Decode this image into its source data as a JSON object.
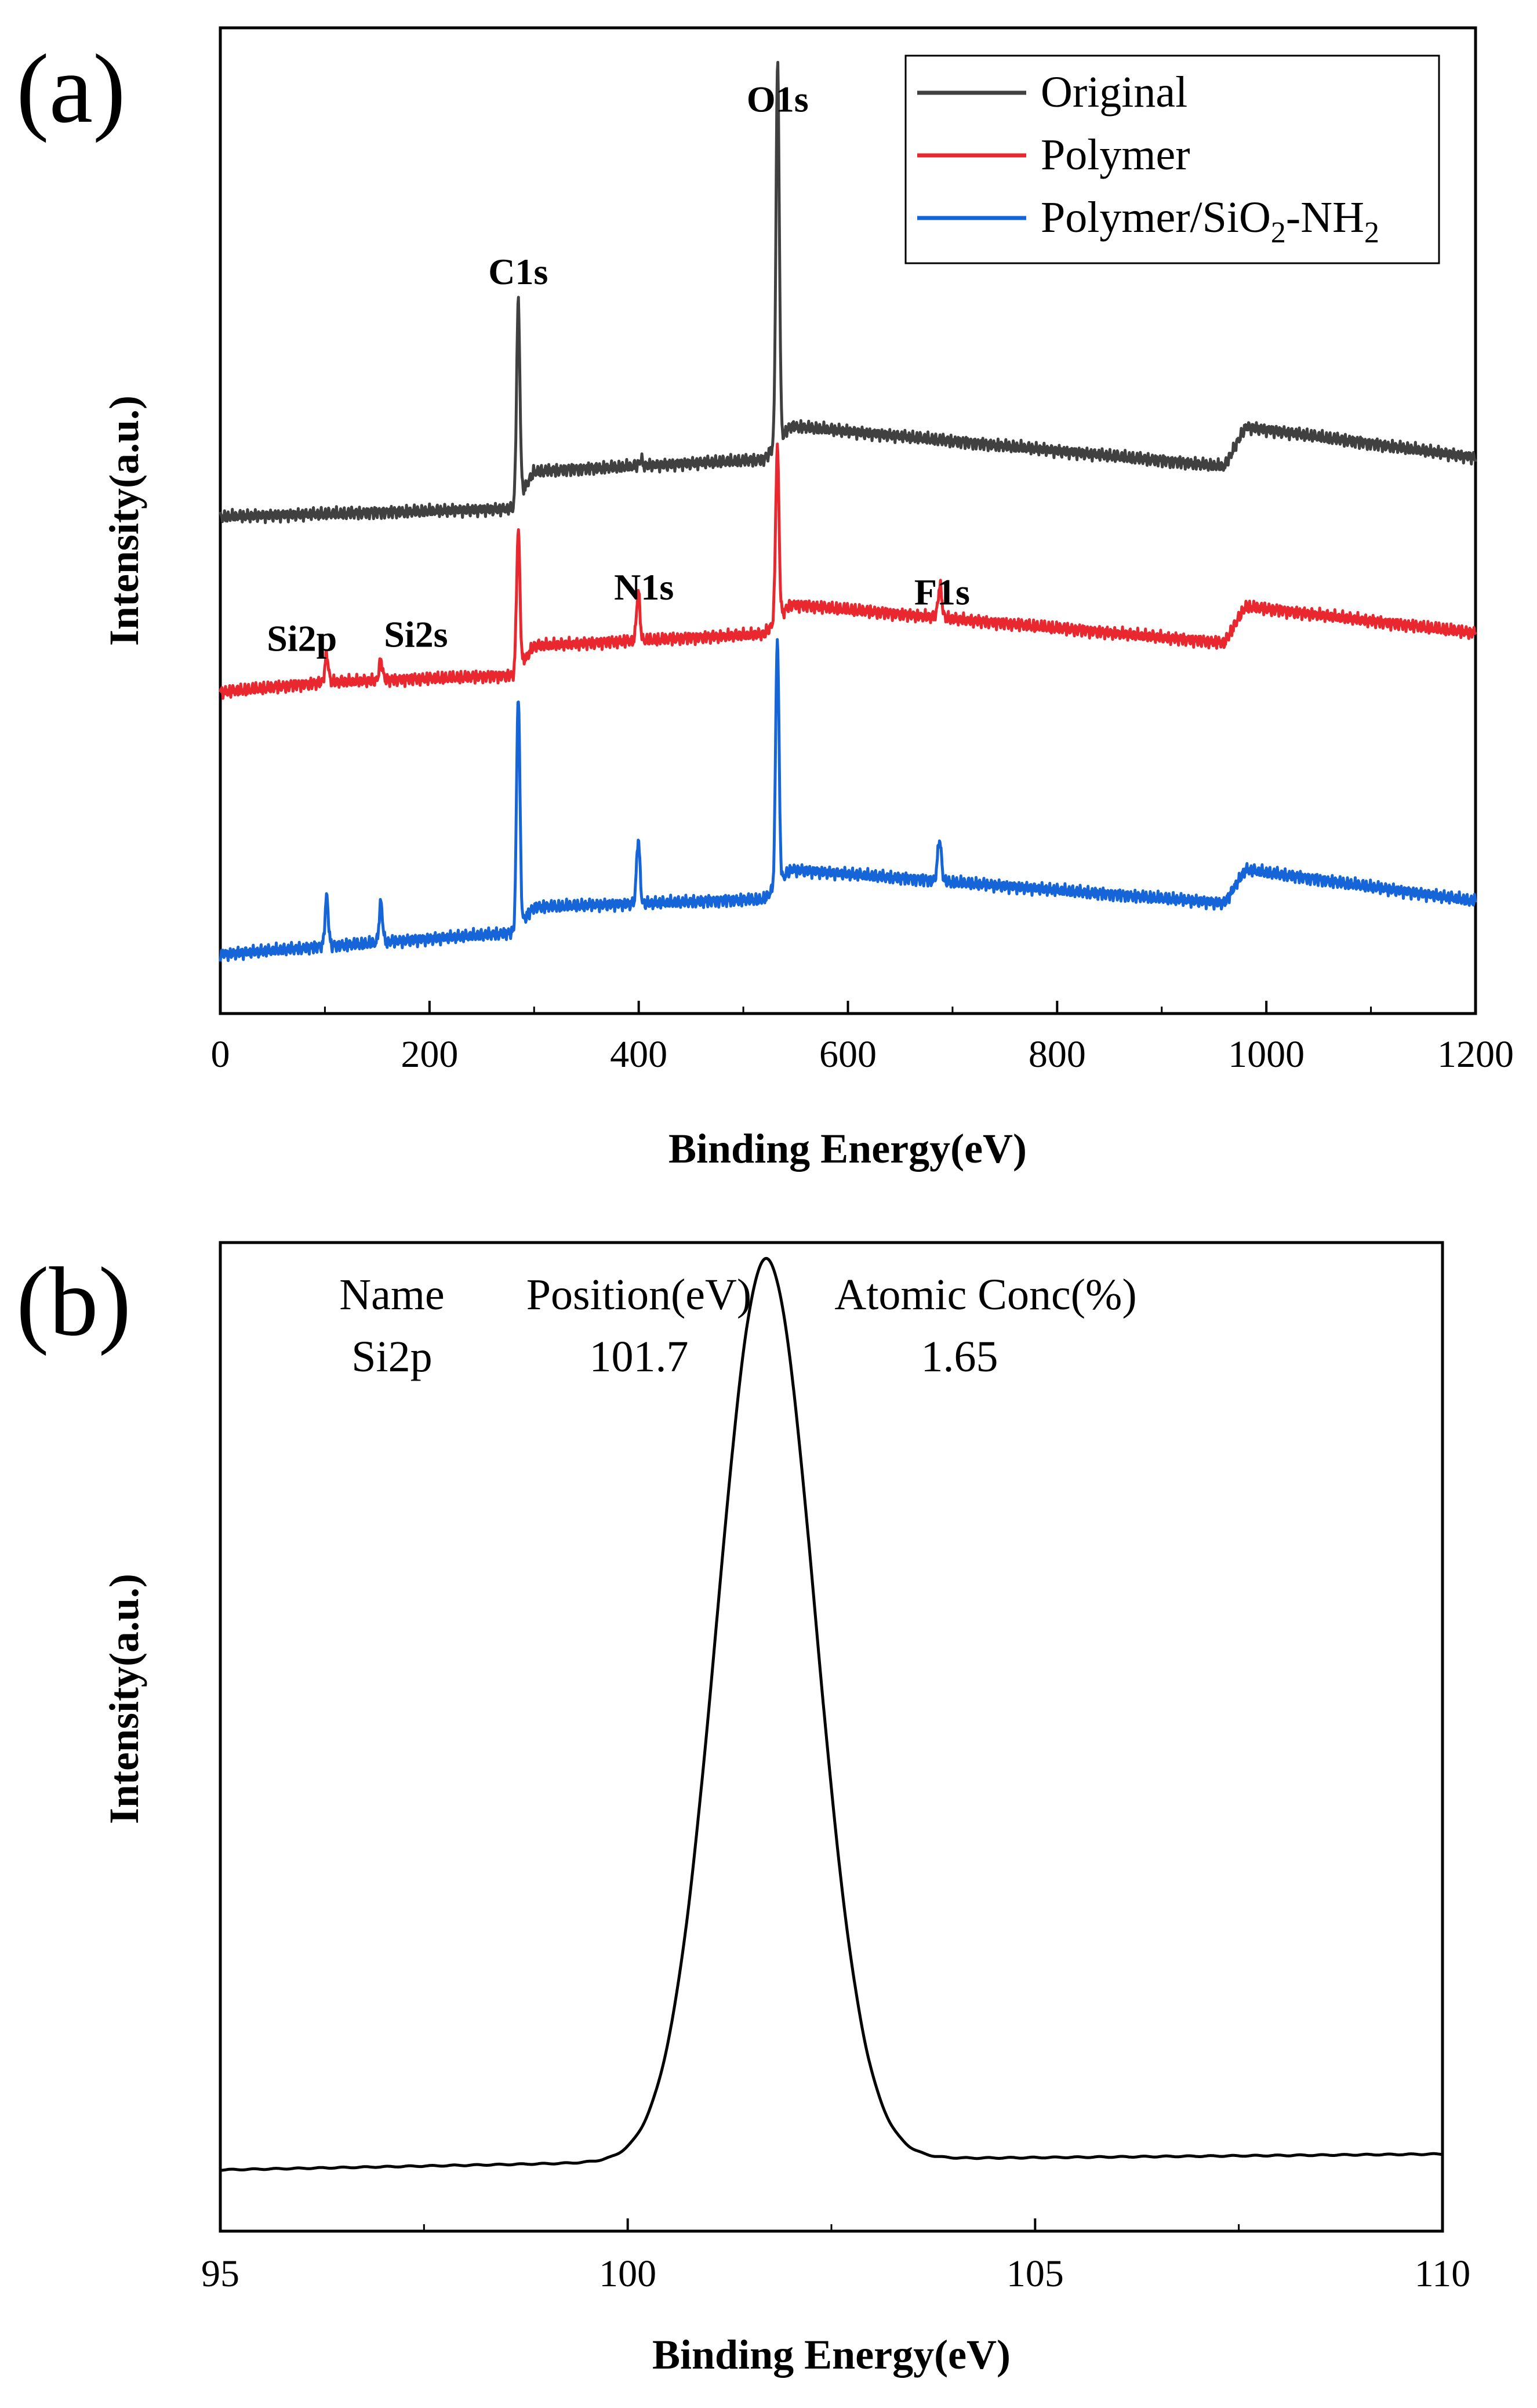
{
  "chart_data": [
    {
      "panel_label": "(a)",
      "type": "line",
      "title": "",
      "xlabel": "Binding Energy(eV)",
      "ylabel": "Intensity(a.u.)",
      "xlim": [
        0,
        1200
      ],
      "ylim": [
        0,
        100
      ],
      "xticks": [
        "0",
        "200",
        "400",
        "600",
        "800",
        "1000",
        "1200"
      ],
      "grid": false,
      "legend_position": "top-right",
      "legend": [
        {
          "label": "Original",
          "color": "#404040"
        },
        {
          "label": "Polymer",
          "color": "#e8282e"
        },
        {
          "label": "Polymer/SiO",
          "sub1": "2",
          "mid": "-NH",
          "sub2": "2",
          "color": "#1565d8"
        }
      ],
      "series": [
        {
          "name": "Original",
          "color": "#404040",
          "baseline": [
            [
              0,
              50.4
            ],
            [
              280,
              51.2
            ],
            [
              300,
              55.0
            ],
            [
              520,
              56.2
            ],
            [
              545,
              59.6
            ],
            [
              960,
              55.5
            ],
            [
              980,
              59.5
            ],
            [
              1200,
              56.4
            ]
          ],
          "peaks": [
            {
              "x": 284.8,
              "h": 20.0,
              "w": 1.6
            },
            {
              "x": 402,
              "h": 0.7,
              "w": 1.5
            },
            {
              "x": 532.8,
              "h": 38.4,
              "w": 1.6
            }
          ]
        },
        {
          "name": "Polymer",
          "color": "#e8282e",
          "baseline": [
            [
              0,
              32.6
            ],
            [
              100,
              33.6
            ],
            [
              280,
              34.3
            ],
            [
              300,
              37.3
            ],
            [
              520,
              38.5
            ],
            [
              545,
              41.5
            ],
            [
              960,
              37.6
            ],
            [
              980,
              41.3
            ],
            [
              1200,
              38.6
            ]
          ],
          "peaks": [
            {
              "x": 101.7,
              "h": 2.8,
              "w": 1.6
            },
            {
              "x": 153.5,
              "h": 2.0,
              "w": 1.6
            },
            {
              "x": 284.8,
              "h": 14.0,
              "w": 1.6
            },
            {
              "x": 399.5,
              "h": 5.0,
              "w": 1.6
            },
            {
              "x": 532.5,
              "h": 17.5,
              "w": 1.6
            },
            {
              "x": 688.0,
              "h": 3.2,
              "w": 1.8
            }
          ]
        },
        {
          "name": "Polymer/SiO2-NH2",
          "color": "#1565d8",
          "baseline": [
            [
              0,
              6.0
            ],
            [
              100,
              6.8
            ],
            [
              280,
              8.2
            ],
            [
              300,
              10.8
            ],
            [
              520,
              11.6
            ],
            [
              545,
              14.6
            ],
            [
              960,
              11.2
            ],
            [
              980,
              14.6
            ],
            [
              1200,
              11.4
            ]
          ],
          "peaks": [
            {
              "x": 101.7,
              "h": 5.0,
              "w": 1.6
            },
            {
              "x": 153.5,
              "h": 4.0,
              "w": 1.6
            },
            {
              "x": 284.8,
              "h": 23.5,
              "w": 1.6
            },
            {
              "x": 399.5,
              "h": 6.5,
              "w": 1.6
            },
            {
              "x": 532.5,
              "h": 25.0,
              "w": 1.6
            },
            {
              "x": 687.5,
              "h": 4.2,
              "w": 1.8
            }
          ]
        }
      ],
      "annotations": [
        {
          "text": "C1s",
          "x": 284.8,
          "y": 74.0
        },
        {
          "text": "O1s",
          "x": 532.8,
          "y": 91.5
        },
        {
          "text": "Si2p",
          "x": 78,
          "y": 36.8
        },
        {
          "text": "Si2s",
          "x": 187,
          "y": 37.2
        },
        {
          "text": "N1s",
          "x": 405,
          "y": 42.0
        },
        {
          "text": "F1s",
          "x": 690,
          "y": 41.5
        }
      ]
    },
    {
      "panel_label": "(b)",
      "type": "line",
      "title": "",
      "xlabel": "Binding Energy(eV)",
      "ylabel": "Intensity(a.u.)",
      "xlim": [
        95,
        110
      ],
      "ylim": [
        0,
        100
      ],
      "xticks": [
        "95",
        "100",
        "105",
        "110"
      ],
      "grid": false,
      "series": [
        {
          "name": "Si2p",
          "color": "#000000",
          "peak": {
            "center": 101.7,
            "height": 91.2,
            "sigma": 0.6
          },
          "baseline": [
            [
              95,
              6.2
            ],
            [
              99.5,
              6.9
            ],
            [
              103.0,
              7.3
            ],
            [
              110,
              7.8
            ]
          ]
        }
      ],
      "table": {
        "headers": [
          "Name",
          "Position(eV)",
          "Atomic Conc(%)"
        ],
        "row": [
          "Si2p",
          "101.7",
          "1.65"
        ]
      }
    }
  ]
}
